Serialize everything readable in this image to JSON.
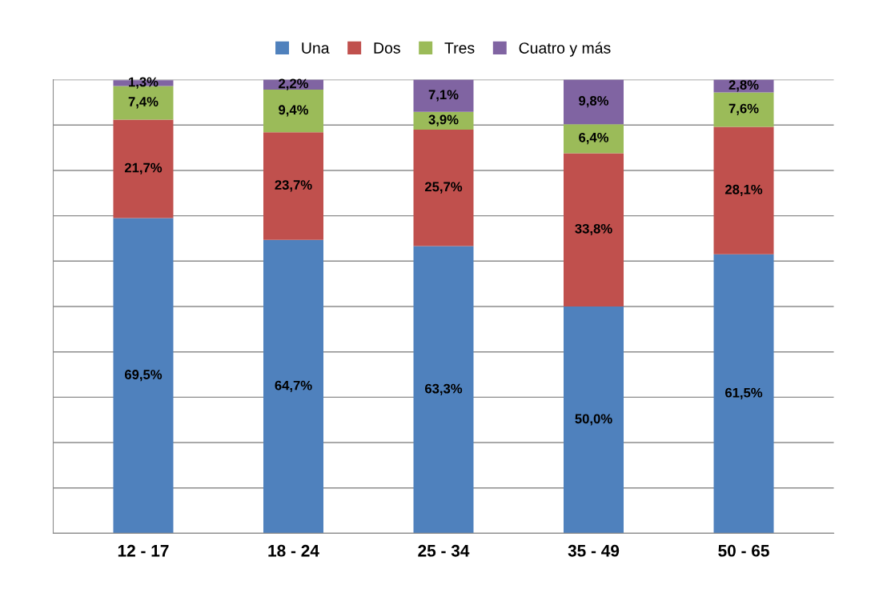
{
  "chart_data": {
    "type": "bar",
    "stacked": true,
    "data_labels": true,
    "legend": "top",
    "grid": "y",
    "categories": [
      "12 - 17",
      "18 - 24",
      "25 - 34",
      "35 - 49",
      "50 - 65"
    ],
    "ylim": [
      0,
      100
    ],
    "yticks": [
      {
        "value": 0,
        "label": null
      },
      {
        "value": 10,
        "label": null
      },
      {
        "value": 20,
        "label": null
      },
      {
        "value": 30,
        "label": null
      },
      {
        "value": 40,
        "label": null
      },
      {
        "value": 50,
        "label": null
      },
      {
        "value": 60,
        "label": null
      },
      {
        "value": 70,
        "label": null
      },
      {
        "value": 80,
        "label": null
      },
      {
        "value": 90,
        "label": null
      },
      {
        "value": 100,
        "label": null
      }
    ],
    "series": [
      {
        "name": "Una",
        "color": "#4f81bd",
        "values": [
          69.5,
          64.7,
          63.3,
          50.0,
          61.5
        ],
        "value_labels": [
          "69,5%",
          "64,7%",
          "63,3%",
          "50,0%",
          "61,5%"
        ]
      },
      {
        "name": "Dos",
        "color": "#c0504d",
        "values": [
          21.7,
          23.7,
          25.7,
          33.8,
          28.1
        ],
        "value_labels": [
          "21,7%",
          "23,7%",
          "25,7%",
          "33,8%",
          "28,1%"
        ]
      },
      {
        "name": "Tres",
        "color": "#9bbb59",
        "values": [
          7.4,
          9.4,
          3.9,
          6.4,
          7.6
        ],
        "value_labels": [
          "7,4%",
          "9,4%",
          "3,9%",
          "6,4%",
          "7,6%"
        ]
      },
      {
        "name": "Cuatro y más",
        "color": "#8064a2",
        "values": [
          1.3,
          2.2,
          7.1,
          9.8,
          2.8
        ],
        "value_labels": [
          "1,3%",
          "2,2%",
          "7,1%",
          "9,8%",
          "2,8%"
        ]
      }
    ]
  }
}
